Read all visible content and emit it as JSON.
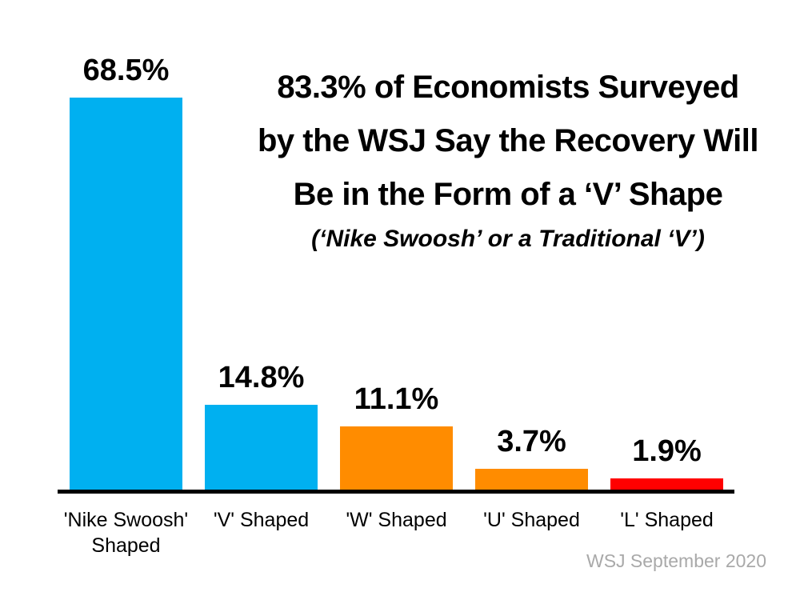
{
  "title": {
    "lines": [
      "83.3% of Economists Surveyed",
      "by the WSJ Say the Recovery Will",
      "Be in the Form of a ‘V’ Shape"
    ]
  },
  "subtitle": "(‘Nike Swoosh’ or a Traditional ‘V’)",
  "source": "WSJ September 2020",
  "colors": {
    "blue": "#00B0F0",
    "orange": "#FF8C00",
    "red": "#FF0000",
    "axis": "#000000",
    "text": "#000000",
    "source_text": "#A9A9A9",
    "background": "#FFFFFF"
  },
  "chart_data": {
    "type": "bar",
    "categories": [
      "'Nike Swoosh' Shaped",
      "'V' Shaped",
      "'W' Shaped",
      "'U' Shaped",
      "'L' Shaped"
    ],
    "values": [
      68.5,
      14.8,
      11.1,
      3.7,
      1.9
    ],
    "value_labels": [
      "68.5%",
      "14.8%",
      "11.1%",
      "3.7%",
      "1.9%"
    ],
    "bar_colors": [
      "#00B0F0",
      "#00B0F0",
      "#FF8C00",
      "#FF8C00",
      "#FF0000"
    ],
    "title": "83.3% of Economists Surveyed by the WSJ Say the Recovery Will Be in the Form of a ‘V’ Shape",
    "subtitle": "(‘Nike Swoosh’ or a Traditional ‘V’)",
    "xlabel": "",
    "ylabel": "",
    "ylim": [
      0,
      70
    ],
    "grid": false,
    "legend": false,
    "annotations": [
      "WSJ September 2020"
    ]
  }
}
